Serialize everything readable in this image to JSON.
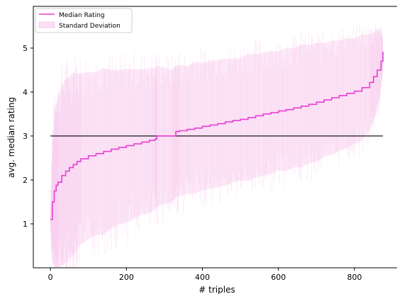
{
  "chart_data": {
    "type": "line",
    "title": "",
    "xlabel": "# triples",
    "ylabel": "avg. median rating",
    "xlim": [
      -45,
      912
    ],
    "ylim": [
      0,
      5.95
    ],
    "xticks": [
      0,
      200,
      400,
      600,
      800
    ],
    "yticks": [
      1,
      2,
      3,
      4,
      5
    ],
    "grid": false,
    "legend": {
      "placement": "top-left"
    },
    "colors": {
      "median": "#e83fd4",
      "std_fill": "#fbe0f4",
      "std_edge": "#f4b6e6",
      "reference": "#000000"
    },
    "series": [
      {
        "name": "Median Rating",
        "kind": "line",
        "x": [
          0,
          5,
          10,
          15,
          20,
          30,
          40,
          50,
          60,
          70,
          80,
          100,
          120,
          140,
          160,
          180,
          200,
          220,
          240,
          260,
          275,
          280,
          300,
          320,
          330,
          340,
          360,
          380,
          400,
          420,
          440,
          460,
          480,
          500,
          520,
          540,
          560,
          580,
          600,
          620,
          640,
          660,
          680,
          700,
          720,
          740,
          760,
          780,
          800,
          820,
          840,
          850,
          860,
          870,
          875
        ],
        "y": [
          1.1,
          1.5,
          1.75,
          1.88,
          1.95,
          2.1,
          2.2,
          2.28,
          2.35,
          2.42,
          2.48,
          2.55,
          2.6,
          2.65,
          2.7,
          2.74,
          2.78,
          2.82,
          2.86,
          2.9,
          2.93,
          3.0,
          3.0,
          3.0,
          3.1,
          3.12,
          3.15,
          3.18,
          3.22,
          3.25,
          3.28,
          3.32,
          3.35,
          3.38,
          3.42,
          3.46,
          3.5,
          3.53,
          3.57,
          3.6,
          3.64,
          3.68,
          3.72,
          3.77,
          3.82,
          3.87,
          3.92,
          3.97,
          4.02,
          4.1,
          4.22,
          4.35,
          4.5,
          4.7,
          4.92
        ]
      },
      {
        "name": "Standard Deviation",
        "kind": "band",
        "x": [
          0,
          5,
          10,
          15,
          20,
          30,
          40,
          50,
          60,
          70,
          80,
          100,
          120,
          140,
          160,
          180,
          200,
          220,
          240,
          260,
          275,
          280,
          300,
          320,
          330,
          340,
          360,
          380,
          400,
          420,
          440,
          460,
          480,
          500,
          520,
          540,
          560,
          580,
          600,
          620,
          640,
          660,
          680,
          700,
          720,
          740,
          760,
          780,
          800,
          820,
          840,
          850,
          860,
          870,
          875
        ],
        "y": [
          1.1,
          1.5,
          1.75,
          1.88,
          1.95,
          2.1,
          2.2,
          2.28,
          2.35,
          2.42,
          2.48,
          2.55,
          2.6,
          2.65,
          2.7,
          2.74,
          2.78,
          2.82,
          2.86,
          2.9,
          2.93,
          3.0,
          3.0,
          3.0,
          3.1,
          3.12,
          3.15,
          3.18,
          3.22,
          3.25,
          3.28,
          3.32,
          3.35,
          3.38,
          3.42,
          3.46,
          3.5,
          3.53,
          3.57,
          3.6,
          3.64,
          3.68,
          3.72,
          3.77,
          3.82,
          3.87,
          3.92,
          3.97,
          4.02,
          4.1,
          4.22,
          4.35,
          4.5,
          4.7,
          4.92
        ],
        "spread": [
          0.2,
          1.35,
          1.7,
          1.85,
          1.95,
          2.05,
          2.1,
          2.05,
          2.1,
          2.0,
          1.95,
          1.9,
          1.85,
          1.9,
          1.8,
          1.75,
          1.75,
          1.7,
          1.65,
          1.65,
          1.6,
          1.6,
          1.55,
          1.5,
          1.5,
          1.5,
          1.45,
          1.5,
          1.45,
          1.45,
          1.45,
          1.45,
          1.4,
          1.4,
          1.45,
          1.4,
          1.4,
          1.4,
          1.35,
          1.4,
          1.35,
          1.4,
          1.35,
          1.35,
          1.3,
          1.3,
          1.25,
          1.25,
          1.2,
          1.2,
          1.1,
          1.0,
          0.95,
          0.7,
          0.3
        ]
      },
      {
        "name": "",
        "kind": "reference",
        "x": [
          0,
          875
        ],
        "y": [
          3,
          3
        ]
      }
    ]
  },
  "legend_entries": [
    "Median Rating",
    "Standard Deviation"
  ]
}
